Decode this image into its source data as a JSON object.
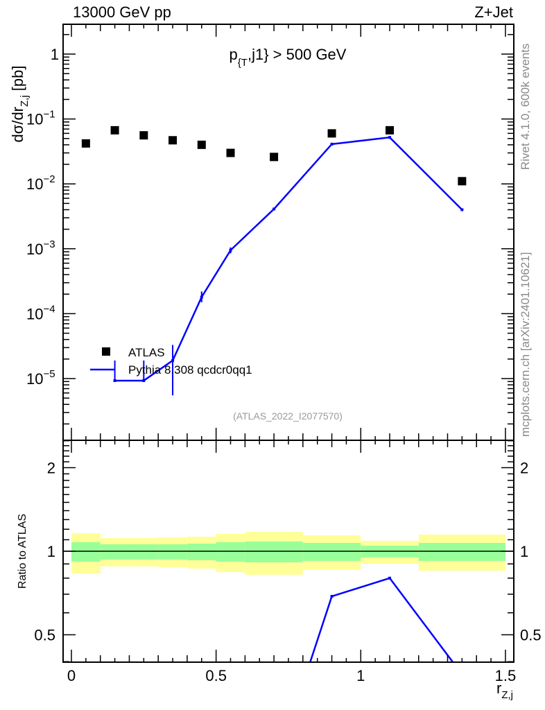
{
  "header": {
    "left": "13000 GeV pp",
    "right": "Z+Jet"
  },
  "side_labels": {
    "rivet": "Rivet 4.1.0,  600k events",
    "mcplots": "mcplots.cern.ch [arXiv:2401.10621]"
  },
  "analysis_id": "(ATLAS_2022_I2077570)",
  "colors": {
    "data": "#000000",
    "mc": "#0000ff",
    "band_inner": "#99ff99",
    "band_outer": "#ffff99"
  },
  "chart_data": [
    {
      "type": "scatter",
      "title": "p_{T},j1} > 500 GeV",
      "title_parts": {
        "main": "p",
        "sub": "{T",
        "rest": ",j1} > 500 GeV"
      },
      "ylabel": "dσ/dr_{Z,j} [pb]",
      "ylabel_parts": {
        "main": "dσ/dr",
        "sub": "Z,j",
        "rest": " [pb]"
      },
      "yscale": "log",
      "ylim": [
        1.1e-06,
        2.9
      ],
      "xlim": [
        -0.03,
        1.53
      ],
      "ytick_labels": [
        {
          "value": 1,
          "base": "1",
          "exp": ""
        },
        {
          "value": 0.1,
          "base": "10",
          "exp": "−1"
        },
        {
          "value": 0.01,
          "base": "10",
          "exp": "−2"
        },
        {
          "value": 0.001,
          "base": "10",
          "exp": "−3"
        },
        {
          "value": 0.0001,
          "base": "10",
          "exp": "−4"
        },
        {
          "value": 1e-05,
          "base": "10",
          "exp": "−5"
        }
      ],
      "legend": {
        "placement": "lower-left",
        "entries": [
          "ATLAS",
          "Pythia 8.308 qcdcr0qq1"
        ]
      },
      "series": [
        {
          "name": "ATLAS",
          "x": [
            0.05,
            0.15,
            0.25,
            0.35,
            0.45,
            0.55,
            0.7,
            0.9,
            1.1,
            1.35
          ],
          "y": [
            0.042,
            0.067,
            0.056,
            0.047,
            0.04,
            0.03,
            0.026,
            0.06,
            0.067,
            0.011
          ]
        },
        {
          "name": "Pythia 8.308 qcdcr0qq1",
          "x": [
            0.15,
            0.25,
            0.35,
            0.45,
            0.55,
            0.7,
            0.9,
            1.1,
            1.35
          ],
          "y": [
            9.3e-06,
            9.3e-06,
            1.9e-05,
            0.00018,
            0.00095,
            0.0041,
            0.041,
            0.052,
            0.004
          ],
          "yerr_low": [
            9.3e-06,
            9.3e-06,
            5.5e-06,
            0.00015,
            0.00085,
            0.004,
            0.04,
            0.051,
            0.0039
          ],
          "yerr_high": [
            1.9e-05,
            1.9e-05,
            3.3e-05,
            0.00022,
            0.00105,
            0.0042,
            0.042,
            0.053,
            0.0041
          ]
        }
      ]
    },
    {
      "type": "line",
      "ylabel": "Ratio to ATLAS",
      "xlabel": "r_{Z,j}",
      "xlabel_parts": {
        "main": "r",
        "sub": "Z,j"
      },
      "yscale": "log",
      "ylim": [
        0.4,
        2.5
      ],
      "xlim": [
        -0.03,
        1.53
      ],
      "xticks": [
        {
          "value": 0,
          "label": "0"
        },
        {
          "value": 0.5,
          "label": "0.5"
        },
        {
          "value": 1,
          "label": "1"
        },
        {
          "value": 1.5,
          "label": "1.5"
        }
      ],
      "yticks": [
        {
          "value": 2,
          "label": "2"
        },
        {
          "value": 1,
          "label": "1"
        },
        {
          "value": 0.5,
          "label": "0.5"
        }
      ],
      "bins": [
        [
          0,
          0.1
        ],
        [
          0.1,
          0.2
        ],
        [
          0.2,
          0.3
        ],
        [
          0.3,
          0.4
        ],
        [
          0.4,
          0.5
        ],
        [
          0.5,
          0.6
        ],
        [
          0.6,
          0.8
        ],
        [
          0.8,
          1.0
        ],
        [
          1.0,
          1.2
        ],
        [
          1.2,
          1.5
        ]
      ],
      "band_outer": {
        "low": [
          0.832,
          0.881,
          0.881,
          0.876,
          0.866,
          0.841,
          0.822,
          0.856,
          0.902,
          0.851
        ],
        "high": [
          1.161,
          1.115,
          1.115,
          1.122,
          1.128,
          1.155,
          1.175,
          1.141,
          1.09,
          1.148
        ]
      },
      "band_inner": {
        "low": [
          0.917,
          0.933,
          0.933,
          0.933,
          0.928,
          0.917,
          0.912,
          0.923,
          0.95,
          0.923
        ],
        "high": [
          1.078,
          1.059,
          1.059,
          1.059,
          1.065,
          1.078,
          1.084,
          1.071,
          1.047,
          1.071
        ]
      },
      "series": [
        {
          "name": "Pythia 8.308 qcdcr0qq1 / ATLAS",
          "x": [
            0.7,
            0.9,
            1.1,
            1.35
          ],
          "y": [
            0.16,
            0.688,
            0.8,
            0.36
          ]
        }
      ]
    }
  ]
}
